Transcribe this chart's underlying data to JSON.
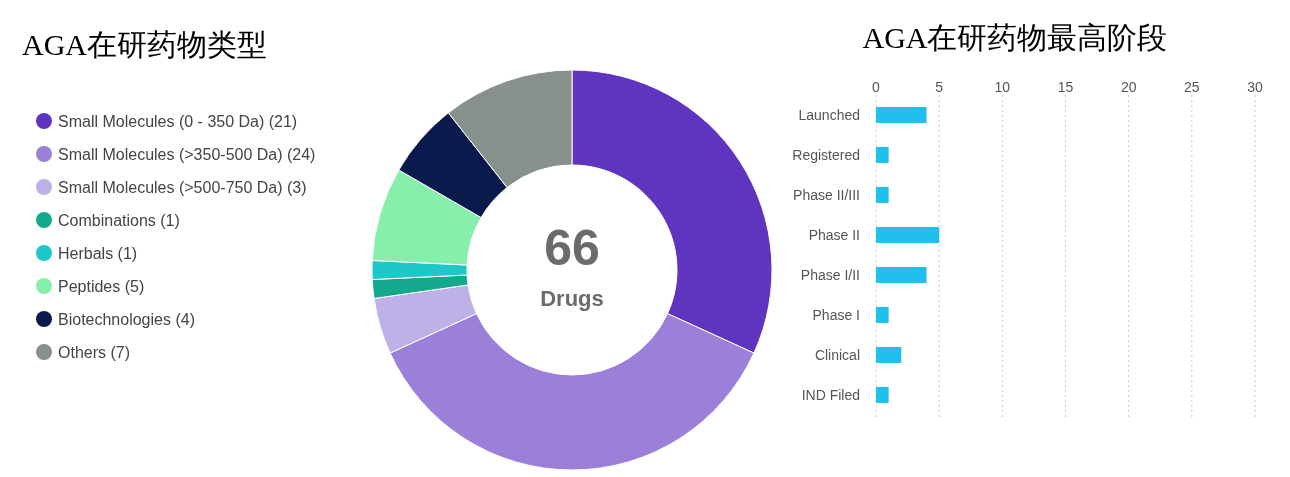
{
  "chart_data": [
    {
      "type": "donut",
      "title": "AGA在研药物类型",
      "categories": [
        "Small Molecules (0 - 350 Da) (21)",
        "Small Molecules (>350-500 Da) (24)",
        "Small Molecules (>500-750 Da) (3)",
        "Combinations (1)",
        "Herbals (1)",
        "Peptides (5)",
        "Biotechnologies (4)",
        "Others (7)"
      ],
      "values": [
        21,
        24,
        3,
        1,
        1,
        5,
        4,
        7
      ],
      "colors": [
        "#5f35bf",
        "#9b7fd8",
        "#c0b0e8",
        "#14a88c",
        "#1ec8c8",
        "#86efac",
        "#0b1a4d",
        "#87908a"
      ],
      "legend": "left",
      "annotations": [
        "66",
        "Drugs"
      ]
    },
    {
      "type": "bar",
      "orientation": "horizontal",
      "title": "AGA在研药物最高阶段",
      "categories": [
        "Launched",
        "Registered",
        "Phase II/III",
        "Phase II",
        "Phase I/II",
        "Phase I",
        "Clinical",
        "IND Filed"
      ],
      "values": [
        4,
        1,
        1,
        5,
        4,
        1,
        2,
        1
      ],
      "color": "#1fc0ec",
      "xlim": [
        0,
        30
      ],
      "xticks": [
        0,
        5,
        10,
        15,
        20,
        25,
        30
      ],
      "grid": "x"
    }
  ]
}
